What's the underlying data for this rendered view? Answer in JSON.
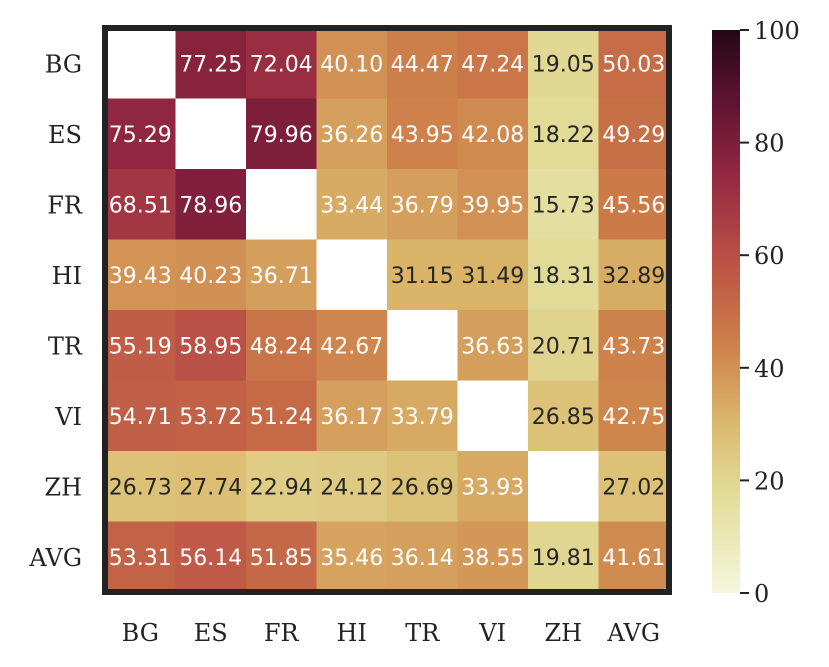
{
  "chart_data": {
    "type": "heatmap",
    "title": "",
    "xlabel": "",
    "ylabel": "",
    "x_categories": [
      "BG",
      "ES",
      "FR",
      "HI",
      "TR",
      "VI",
      "ZH",
      "AVG"
    ],
    "y_categories": [
      "BG",
      "ES",
      "FR",
      "HI",
      "TR",
      "VI",
      "ZH",
      "AVG"
    ],
    "values": [
      [
        null,
        77.25,
        72.04,
        40.1,
        44.47,
        47.24,
        19.05,
        50.03
      ],
      [
        75.29,
        null,
        79.96,
        36.26,
        43.95,
        42.08,
        18.22,
        49.29
      ],
      [
        68.51,
        78.96,
        null,
        33.44,
        36.79,
        39.95,
        15.73,
        45.56
      ],
      [
        39.43,
        40.23,
        36.71,
        null,
        31.15,
        31.49,
        18.31,
        32.89
      ],
      [
        55.19,
        58.95,
        48.24,
        42.67,
        null,
        36.63,
        20.71,
        43.73
      ],
      [
        54.71,
        53.72,
        51.24,
        36.17,
        33.79,
        null,
        26.85,
        42.75
      ],
      [
        26.73,
        27.74,
        22.94,
        24.12,
        26.69,
        33.93,
        null,
        27.02
      ],
      [
        53.31,
        56.14,
        51.85,
        35.46,
        36.14,
        38.55,
        19.81,
        41.61
      ]
    ],
    "value_format": "0.00",
    "colormap": "yellow-orange-red-dark",
    "color_range": [
      0,
      100
    ],
    "colorbar": {
      "ticks": [
        0,
        20,
        40,
        60,
        80,
        100
      ],
      "tick_labels": [
        "0",
        "20",
        "40",
        "60",
        "80",
        "100"
      ],
      "position": "right"
    },
    "grid": false,
    "frame_color": "#222222"
  }
}
